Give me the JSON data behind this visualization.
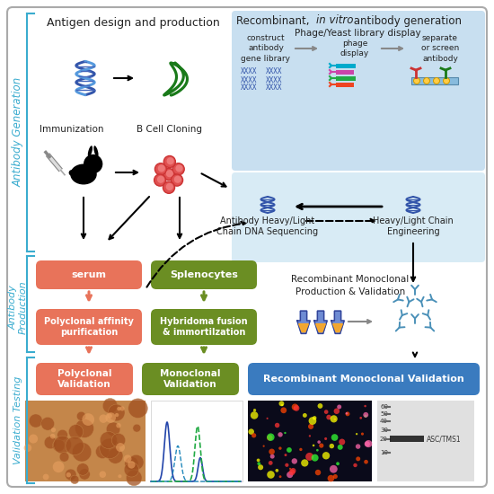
{
  "bg_color": "#ffffff",
  "fig_size": [
    5.5,
    5.5
  ],
  "dpi": 100,
  "sections": {
    "antibody_generation_label": "Antibody Generation",
    "antibody_production_label": "Antibody\nProduction",
    "validation_testing_label": "Validation Testing"
  },
  "colors": {
    "salmon": "#E8735A",
    "olive": "#6B8E23",
    "steel_blue": "#4A90B8",
    "light_blue_bg": "#C8DFF0",
    "lighter_blue_bg": "#D8EBF5",
    "teal_label": "#3AACCF",
    "dark_text": "#222222",
    "gray_arrow": "#888888",
    "black": "#111111",
    "white": "#ffffff",
    "dna_blue": "#3355AA",
    "dna_blue2": "#5599DD",
    "protein_green": "#1A7A1A",
    "cell_red": "#E05050",
    "validation_blue": "#3A7BBF"
  },
  "text": {
    "antigen_title": "Antigen design and production",
    "phage_yeast": "Phage/Yeast library display",
    "construct": "construct\nantibody\ngene library",
    "phage_display": "phage\ndisplay",
    "separate": "separate\nor screen\nantibody",
    "immunization": "Immunization",
    "bcell": "B Cell Cloning",
    "serum": "serum",
    "splenocytes": "Splenocytes",
    "polyclonal_purif": "Polyclonal affinity\npurification",
    "hybridoma": "Hybridoma fusion\n& immortilzation",
    "ab_sequencing": "Antibody Heavy/Light\nChain DNA Sequencing",
    "chain_engineering": "Heavy/Light Chain\nEngineering",
    "recomb_production": "Recombinant Monoclonal\nProduction & Validation",
    "polyclonal_val": "Polyclonal\nValidation",
    "monoclonal_val": "Monoclonal\nValidation",
    "recombinant_val": "Recombinant Monoclonal Validation",
    "asc_tms1": "ASC/TMS1"
  }
}
